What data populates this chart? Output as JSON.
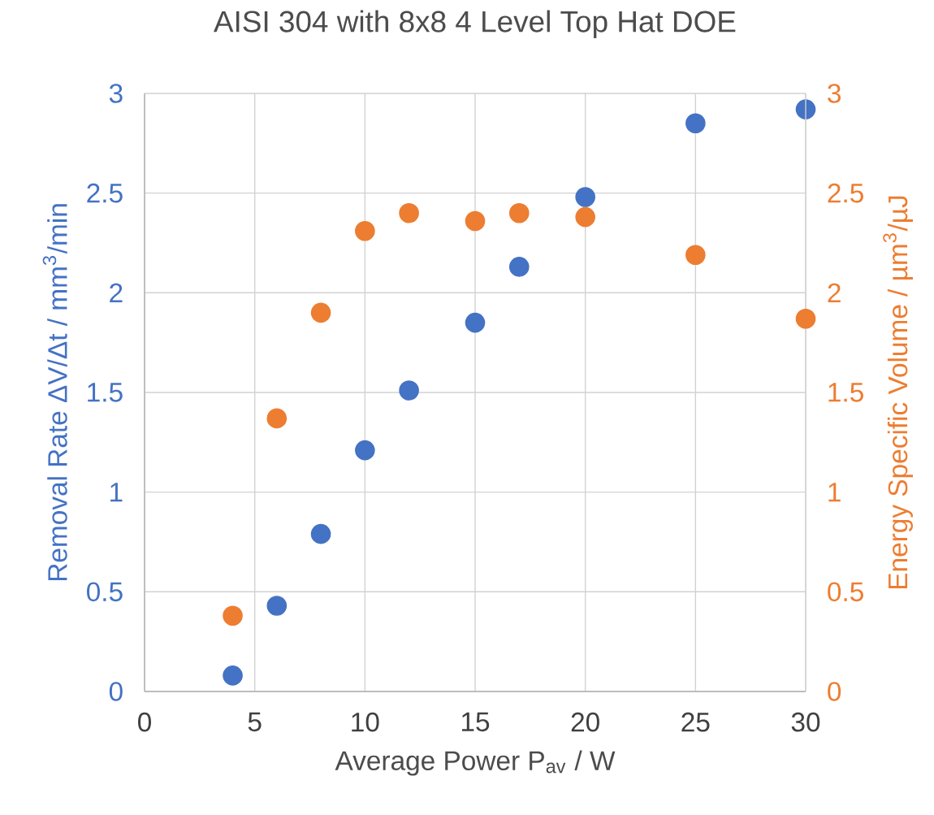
{
  "chart_data": {
    "type": "scatter",
    "title": "AISI 304 with 8x8 4 Level Top Hat DOE",
    "xlabel": "Average Power P$_{av}$ / W",
    "ylabel": "Removal Rate  ΔV/Δt / mm$^{3}$/min",
    "y2label": "Energy Specific Volume / µm$^{3}$/µJ",
    "series": [
      {
        "color": "#4472c4",
        "x": [
          4,
          6,
          8,
          10,
          12,
          15,
          17,
          20,
          25,
          30
        ],
        "values": [
          0.08,
          0.43,
          0.79,
          1.21,
          1.51,
          1.85,
          2.13,
          2.48,
          2.85,
          2.92
        ]
      },
      {
        "color": "#ed7d31",
        "axis": "y2",
        "x": [
          4,
          6,
          8,
          10,
          12,
          15,
          17,
          20,
          25,
          30
        ],
        "values": [
          0.38,
          1.37,
          1.9,
          2.31,
          2.4,
          2.36,
          2.4,
          2.38,
          2.19,
          1.87
        ]
      }
    ],
    "xlim": [
      0,
      30
    ],
    "xticks": [
      0,
      5,
      10,
      15,
      20,
      25,
      30
    ],
    "ylim": [
      0,
      3
    ],
    "yticks": [
      0,
      0.5,
      1,
      1.5,
      2,
      2.5,
      3
    ],
    "y2lim": [
      0,
      3
    ],
    "y2ticks": [
      0,
      0.5,
      1,
      1.5,
      2,
      2.5,
      3
    ],
    "grid": true,
    "marker": "circle"
  }
}
